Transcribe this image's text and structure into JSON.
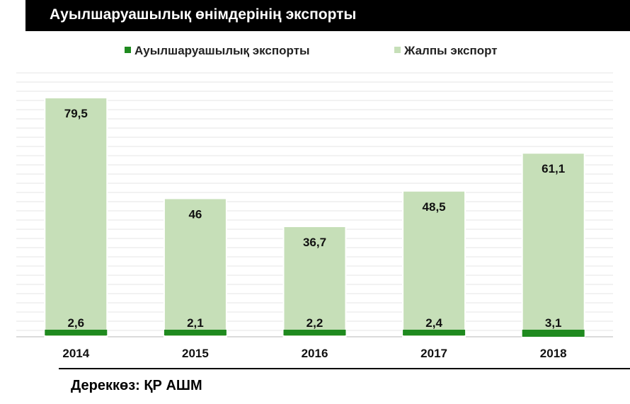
{
  "title": "Ауылшаруашылық өнімдерінің экспорты",
  "source": "Дереккөз: ҚР АШМ",
  "colors": {
    "agri": "#1f8a1f",
    "total": "#c6dfb8",
    "total_border": "#ffffff",
    "grid": "#e4e4e4"
  },
  "chart_data": {
    "type": "bar",
    "title": "Ауылшаруашылық өнімдерінің экспорты",
    "categories": [
      "2014",
      "2015",
      "2016",
      "2017",
      "2018"
    ],
    "series": [
      {
        "name": "Ауылшаруашылық экспорты",
        "values": [
          2.6,
          2.1,
          2.2,
          2.4,
          3.1
        ],
        "labels": [
          "2,6",
          "2,1",
          "2,2",
          "2,4",
          "3,1"
        ]
      },
      {
        "name": "Жалпы экспорт",
        "values": [
          79.5,
          46,
          36.7,
          48.5,
          61.1
        ],
        "labels": [
          "79,5",
          "46",
          "36,7",
          "48,5",
          "61,1"
        ]
      }
    ],
    "ylim": [
      0,
      82
    ],
    "grid": true,
    "legend_position": "top-center",
    "xlabel": "",
    "ylabel": ""
  }
}
